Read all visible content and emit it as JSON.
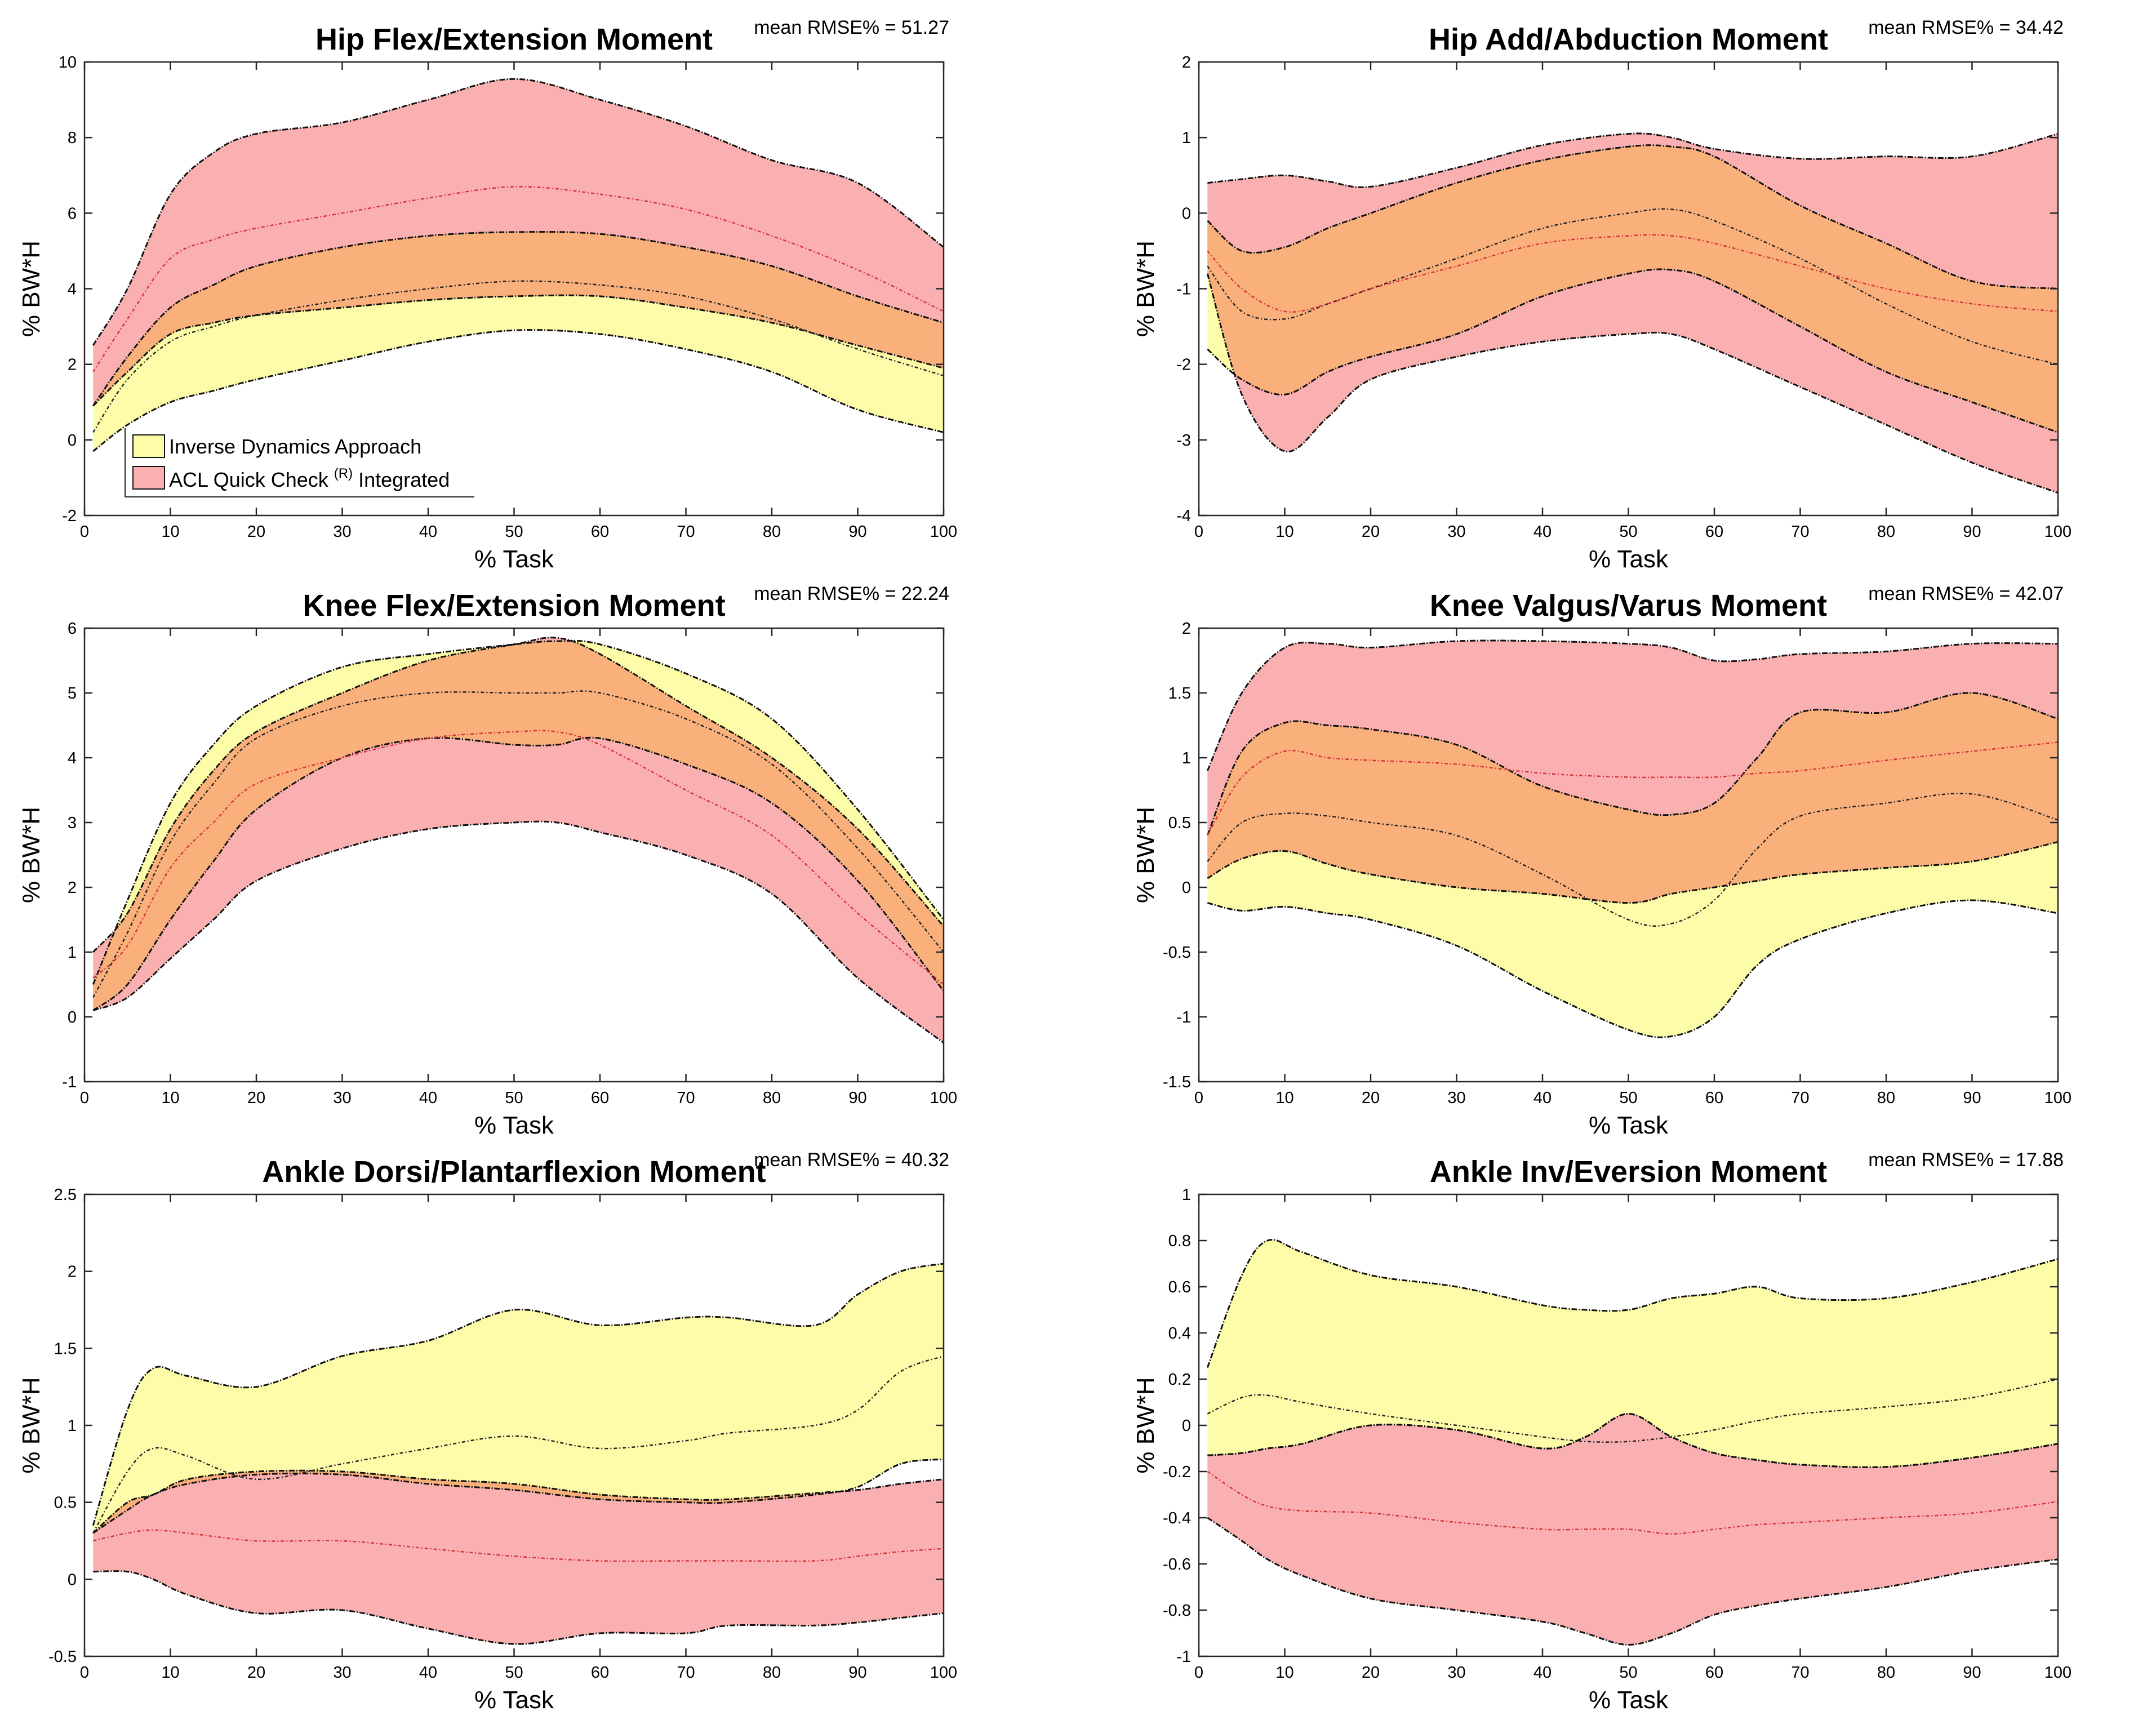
{
  "figure": {
    "x_label": "% Task",
    "y_label": "% BW*H"
  },
  "legend": {
    "items": [
      {
        "label": "Inverse Dynamics Approach",
        "color": "#fdfda9"
      },
      {
        "label_main": "ACL Quick Check",
        "label_sup": "(R)",
        "label_tail": "Integrated",
        "color": "#fab0b1"
      }
    ],
    "overlap_color": "#f9b07b"
  },
  "chart_data": [
    {
      "type": "area",
      "title": "Hip Flex/Extension Moment",
      "rmse": "mean RMSE% = 51.27",
      "xlabel": "% Task",
      "ylabel": "% BW*H",
      "xlim": [
        0,
        100
      ],
      "ylim": [
        -2,
        10
      ],
      "yticks": [
        -2,
        0,
        2,
        4,
        6,
        8,
        10
      ],
      "ytick_labels": [
        "-2",
        "0",
        "2",
        "4",
        "6",
        "8",
        "10"
      ],
      "xticks": [
        0,
        10,
        20,
        30,
        40,
        50,
        60,
        70,
        80,
        90,
        100
      ],
      "xtick_labels": [
        "0",
        "10",
        "20",
        "30",
        "40",
        "50",
        "60",
        "70",
        "80",
        "90",
        "100"
      ],
      "x": [
        1,
        5,
        10,
        15,
        20,
        30,
        40,
        50,
        60,
        70,
        80,
        90,
        100
      ],
      "series": [
        {
          "name": "Inverse Dynamics Approach",
          "upper": [
            0.9,
            2.2,
            3.5,
            4.1,
            4.6,
            5.1,
            5.4,
            5.5,
            5.45,
            5.1,
            4.6,
            3.8,
            3.1
          ],
          "mean": [
            0.2,
            1.6,
            2.6,
            3.0,
            3.3,
            3.7,
            4.0,
            4.2,
            4.1,
            3.8,
            3.2,
            2.4,
            1.7
          ],
          "lower": [
            -0.3,
            0.4,
            1.0,
            1.3,
            1.6,
            2.1,
            2.6,
            2.9,
            2.8,
            2.4,
            1.8,
            0.8,
            0.2
          ]
        },
        {
          "name": "ACL Quick Check (R) Integrated",
          "upper": [
            2.5,
            4.0,
            6.5,
            7.6,
            8.1,
            8.4,
            9.0,
            9.55,
            9.0,
            8.3,
            7.4,
            6.8,
            5.1
          ],
          "mean": [
            1.8,
            3.2,
            4.8,
            5.3,
            5.6,
            6.0,
            6.4,
            6.7,
            6.5,
            6.1,
            5.4,
            4.5,
            3.4
          ],
          "lower": [
            0.9,
            1.8,
            2.8,
            3.1,
            3.3,
            3.5,
            3.7,
            3.8,
            3.8,
            3.5,
            3.1,
            2.5,
            1.9
          ]
        }
      ],
      "legend": "top-left-bottom"
    },
    {
      "type": "area",
      "title": "Hip Add/Abduction Moment",
      "rmse": "mean RMSE% = 34.42",
      "xlabel": "% Task",
      "ylabel": "% BW*H",
      "xlim": [
        0,
        100
      ],
      "ylim": [
        -4,
        2
      ],
      "yticks": [
        -4,
        -3,
        -2,
        -1,
        0,
        1,
        2
      ],
      "ytick_labels": [
        "-4",
        "-3",
        "-2",
        "-1",
        "0",
        "1",
        "2"
      ],
      "xticks": [
        0,
        10,
        20,
        30,
        40,
        50,
        60,
        70,
        80,
        90,
        100
      ],
      "xtick_labels": [
        "0",
        "10",
        "20",
        "30",
        "40",
        "50",
        "60",
        "70",
        "80",
        "90",
        "100"
      ],
      "x": [
        1,
        5,
        10,
        15,
        20,
        30,
        40,
        50,
        55,
        60,
        70,
        80,
        90,
        100
      ],
      "series": [
        {
          "name": "Inverse Dynamics Approach",
          "upper": [
            -0.1,
            -0.5,
            -0.45,
            -0.2,
            0.0,
            0.4,
            0.7,
            0.88,
            0.88,
            0.75,
            0.1,
            -0.4,
            -0.9,
            -1.0
          ],
          "mean": [
            -0.7,
            -1.3,
            -1.4,
            -1.2,
            -1.0,
            -0.6,
            -0.2,
            0.0,
            0.05,
            -0.1,
            -0.6,
            -1.2,
            -1.7,
            -2.0
          ],
          "lower": [
            -1.8,
            -2.2,
            -2.4,
            -2.1,
            -1.9,
            -1.6,
            -1.1,
            -0.8,
            -0.75,
            -0.9,
            -1.5,
            -2.1,
            -2.5,
            -2.9
          ]
        },
        {
          "name": "ACL Quick Check (R) Integrated",
          "upper": [
            0.4,
            0.45,
            0.5,
            0.42,
            0.35,
            0.6,
            0.9,
            1.05,
            1.0,
            0.85,
            0.72,
            0.75,
            0.75,
            1.05
          ],
          "mean": [
            -0.5,
            -1.0,
            -1.3,
            -1.2,
            -1.0,
            -0.7,
            -0.4,
            -0.3,
            -0.3,
            -0.4,
            -0.7,
            -1.0,
            -1.2,
            -1.3
          ],
          "lower": [
            -0.8,
            -2.4,
            -3.15,
            -2.7,
            -2.2,
            -1.9,
            -1.7,
            -1.6,
            -1.6,
            -1.8,
            -2.3,
            -2.8,
            -3.3,
            -3.7
          ]
        }
      ]
    },
    {
      "type": "area",
      "title": "Knee Flex/Extension Moment",
      "rmse": "mean RMSE% = 22.24",
      "xlabel": "% Task",
      "ylabel": "% BW*H",
      "xlim": [
        0,
        100
      ],
      "ylim": [
        -1,
        6
      ],
      "yticks": [
        -1,
        0,
        1,
        2,
        3,
        4,
        5,
        6
      ],
      "ytick_labels": [
        "-1",
        "0",
        "1",
        "2",
        "3",
        "4",
        "5",
        "6"
      ],
      "xticks": [
        0,
        10,
        20,
        30,
        40,
        50,
        60,
        70,
        80,
        90,
        100
      ],
      "xtick_labels": [
        "0",
        "10",
        "20",
        "30",
        "40",
        "50",
        "60",
        "70",
        "80",
        "90",
        "100"
      ],
      "x": [
        1,
        5,
        10,
        15,
        20,
        30,
        40,
        50,
        55,
        60,
        70,
        80,
        90,
        100
      ],
      "series": [
        {
          "name": "Inverse Dynamics Approach",
          "upper": [
            0.5,
            1.8,
            3.3,
            4.2,
            4.8,
            5.4,
            5.6,
            5.75,
            5.8,
            5.75,
            5.3,
            4.6,
            3.2,
            1.5
          ],
          "mean": [
            0.3,
            1.3,
            2.7,
            3.6,
            4.3,
            4.8,
            5.0,
            5.0,
            5.0,
            5.0,
            4.6,
            3.9,
            2.6,
            1.0
          ],
          "lower": [
            0.1,
            0.5,
            1.5,
            2.4,
            3.2,
            4.0,
            4.3,
            4.2,
            4.2,
            4.3,
            3.9,
            3.3,
            2.1,
            0.4
          ]
        },
        {
          "name": "ACL Quick Check (R) Integrated",
          "upper": [
            1.0,
            1.6,
            2.9,
            3.8,
            4.4,
            5.0,
            5.5,
            5.75,
            5.85,
            5.6,
            4.8,
            4.0,
            2.9,
            1.4
          ],
          "mean": [
            0.6,
            1.1,
            2.3,
            3.0,
            3.6,
            4.0,
            4.3,
            4.4,
            4.4,
            4.2,
            3.5,
            2.8,
            1.6,
            0.5
          ],
          "lower": [
            0.1,
            0.3,
            0.9,
            1.5,
            2.1,
            2.6,
            2.9,
            3.0,
            3.0,
            2.85,
            2.5,
            1.9,
            0.6,
            -0.4
          ]
        }
      ]
    },
    {
      "type": "area",
      "title": "Knee Valgus/Varus Moment",
      "rmse": "mean RMSE% = 42.07",
      "xlabel": "% Task",
      "ylabel": "% BW*H",
      "xlim": [
        0,
        100
      ],
      "ylim": [
        -1.5,
        2
      ],
      "yticks": [
        -1.5,
        -1,
        -0.5,
        0,
        0.5,
        1,
        1.5,
        2
      ],
      "ytick_labels": [
        "-1.5",
        "-1",
        "-0.5",
        "0",
        "0.5",
        "1",
        "1.5",
        "2"
      ],
      "xticks": [
        0,
        10,
        20,
        30,
        40,
        50,
        60,
        70,
        80,
        90,
        100
      ],
      "xtick_labels": [
        "0",
        "10",
        "20",
        "30",
        "40",
        "50",
        "60",
        "70",
        "80",
        "90",
        "100"
      ],
      "x": [
        1,
        5,
        10,
        15,
        20,
        30,
        40,
        50,
        55,
        60,
        65,
        70,
        80,
        90,
        100
      ],
      "series": [
        {
          "name": "Inverse Dynamics Approach",
          "upper": [
            0.4,
            1.05,
            1.27,
            1.25,
            1.22,
            1.1,
            0.78,
            0.6,
            0.56,
            0.65,
            1.0,
            1.35,
            1.35,
            1.5,
            1.3
          ],
          "mean": [
            0.2,
            0.5,
            0.57,
            0.55,
            0.5,
            0.4,
            0.1,
            -0.25,
            -0.28,
            -0.1,
            0.3,
            0.55,
            0.65,
            0.72,
            0.52
          ],
          "lower": [
            -0.12,
            -0.18,
            -0.15,
            -0.2,
            -0.25,
            -0.45,
            -0.8,
            -1.1,
            -1.15,
            -1.0,
            -0.6,
            -0.4,
            -0.2,
            -0.1,
            -0.2
          ]
        },
        {
          "name": "ACL Quick Check (R) Integrated",
          "upper": [
            0.9,
            1.5,
            1.85,
            1.88,
            1.85,
            1.9,
            1.9,
            1.88,
            1.85,
            1.75,
            1.76,
            1.8,
            1.82,
            1.88,
            1.88
          ],
          "mean": [
            0.4,
            0.85,
            1.05,
            1.0,
            0.98,
            0.95,
            0.88,
            0.85,
            0.85,
            0.85,
            0.88,
            0.9,
            0.98,
            1.05,
            1.12
          ],
          "lower": [
            0.07,
            0.22,
            0.28,
            0.18,
            0.1,
            0.0,
            -0.05,
            -0.12,
            -0.05,
            0.0,
            0.05,
            0.1,
            0.15,
            0.2,
            0.35
          ]
        }
      ]
    },
    {
      "type": "area",
      "title": "Ankle Dorsi/Plantarflexion Moment",
      "rmse": "mean RMSE% = 40.32",
      "xlabel": "% Task",
      "ylabel": "% BW*H",
      "xlim": [
        0,
        100
      ],
      "ylim": [
        -0.5,
        2.5
      ],
      "yticks": [
        -0.5,
        0,
        0.5,
        1,
        1.5,
        2,
        2.5
      ],
      "ytick_labels": [
        "-0.5",
        "0",
        "0.5",
        "1",
        "1.5",
        "2",
        "2.5"
      ],
      "xticks": [
        0,
        10,
        20,
        30,
        40,
        50,
        60,
        70,
        80,
        90,
        100
      ],
      "xtick_labels": [
        "0",
        "10",
        "20",
        "30",
        "40",
        "50",
        "60",
        "70",
        "80",
        "90",
        "100"
      ],
      "x": [
        1,
        5,
        8,
        12,
        20,
        30,
        40,
        50,
        60,
        70,
        75,
        85,
        90,
        95,
        100
      ],
      "series": [
        {
          "name": "Inverse Dynamics Approach",
          "upper": [
            0.35,
            1.1,
            1.37,
            1.32,
            1.25,
            1.45,
            1.55,
            1.75,
            1.65,
            1.7,
            1.7,
            1.65,
            1.85,
            2.0,
            2.05
          ],
          "mean": [
            0.3,
            0.7,
            0.85,
            0.8,
            0.65,
            0.75,
            0.85,
            0.93,
            0.85,
            0.9,
            0.95,
            1.0,
            1.1,
            1.35,
            1.45
          ],
          "lower": [
            0.3,
            0.45,
            0.55,
            0.62,
            0.68,
            0.68,
            0.62,
            0.58,
            0.52,
            0.5,
            0.5,
            0.55,
            0.6,
            0.75,
            0.78
          ]
        },
        {
          "name": "ACL Quick Check (R) Integrated",
          "upper": [
            0.3,
            0.5,
            0.55,
            0.65,
            0.7,
            0.7,
            0.65,
            0.62,
            0.55,
            0.52,
            0.52,
            0.56,
            0.58,
            0.62,
            0.65
          ],
          "mean": [
            0.25,
            0.3,
            0.32,
            0.3,
            0.25,
            0.25,
            0.2,
            0.15,
            0.12,
            0.12,
            0.12,
            0.12,
            0.15,
            0.18,
            0.2
          ],
          "lower": [
            0.05,
            0.05,
            0.0,
            -0.1,
            -0.22,
            -0.2,
            -0.32,
            -0.42,
            -0.35,
            -0.35,
            -0.3,
            -0.3,
            -0.28,
            -0.25,
            -0.22
          ]
        }
      ]
    },
    {
      "type": "area",
      "title": "Ankle Inv/Eversion Moment",
      "rmse": "mean RMSE% = 17.88",
      "xlabel": "% Task",
      "ylabel": "% BW*H",
      "xlim": [
        0,
        100
      ],
      "ylim": [
        -1,
        1
      ],
      "yticks": [
        -1,
        -0.8,
        -0.6,
        -0.4,
        -0.2,
        0,
        0.2,
        0.4,
        0.6,
        0.8,
        1
      ],
      "ytick_labels": [
        "-1",
        "-0.8",
        "-0.6",
        "-0.4",
        "-0.2",
        "0",
        "0.2",
        "0.4",
        "0.6",
        "0.8",
        "1"
      ],
      "xticks": [
        0,
        10,
        20,
        30,
        40,
        50,
        60,
        70,
        80,
        90,
        100
      ],
      "xtick_labels": [
        "0",
        "10",
        "20",
        "30",
        "40",
        "50",
        "60",
        "70",
        "80",
        "90",
        "100"
      ],
      "x": [
        1,
        5,
        8,
        12,
        20,
        30,
        40,
        45,
        50,
        55,
        60,
        65,
        70,
        80,
        90,
        100
      ],
      "series": [
        {
          "name": "Inverse Dynamics Approach",
          "upper": [
            0.25,
            0.65,
            0.8,
            0.75,
            0.65,
            0.6,
            0.52,
            0.5,
            0.5,
            0.55,
            0.57,
            0.6,
            0.55,
            0.55,
            0.62,
            0.72
          ],
          "mean": [
            0.05,
            0.12,
            0.13,
            0.1,
            0.05,
            0.0,
            -0.05,
            -0.07,
            -0.07,
            -0.05,
            -0.02,
            0.02,
            0.05,
            0.08,
            0.12,
            0.2
          ],
          "lower": [
            -0.13,
            -0.12,
            -0.1,
            -0.08,
            0.0,
            -0.02,
            -0.1,
            -0.05,
            0.05,
            -0.05,
            -0.12,
            -0.15,
            -0.17,
            -0.18,
            -0.14,
            -0.08
          ]
        },
        {
          "name": "ACL Quick Check (R) Integrated",
          "upper": [
            -0.13,
            -0.12,
            -0.1,
            -0.08,
            0.0,
            -0.02,
            -0.1,
            -0.05,
            0.05,
            -0.05,
            -0.12,
            -0.15,
            -0.17,
            -0.18,
            -0.14,
            -0.08
          ],
          "mean": [
            -0.2,
            -0.3,
            -0.35,
            -0.37,
            -0.38,
            -0.42,
            -0.45,
            -0.45,
            -0.45,
            -0.47,
            -0.45,
            -0.43,
            -0.42,
            -0.4,
            -0.38,
            -0.33
          ],
          "lower": [
            -0.4,
            -0.5,
            -0.58,
            -0.65,
            -0.75,
            -0.8,
            -0.85,
            -0.9,
            -0.95,
            -0.9,
            -0.82,
            -0.78,
            -0.75,
            -0.7,
            -0.63,
            -0.58
          ]
        }
      ]
    }
  ]
}
